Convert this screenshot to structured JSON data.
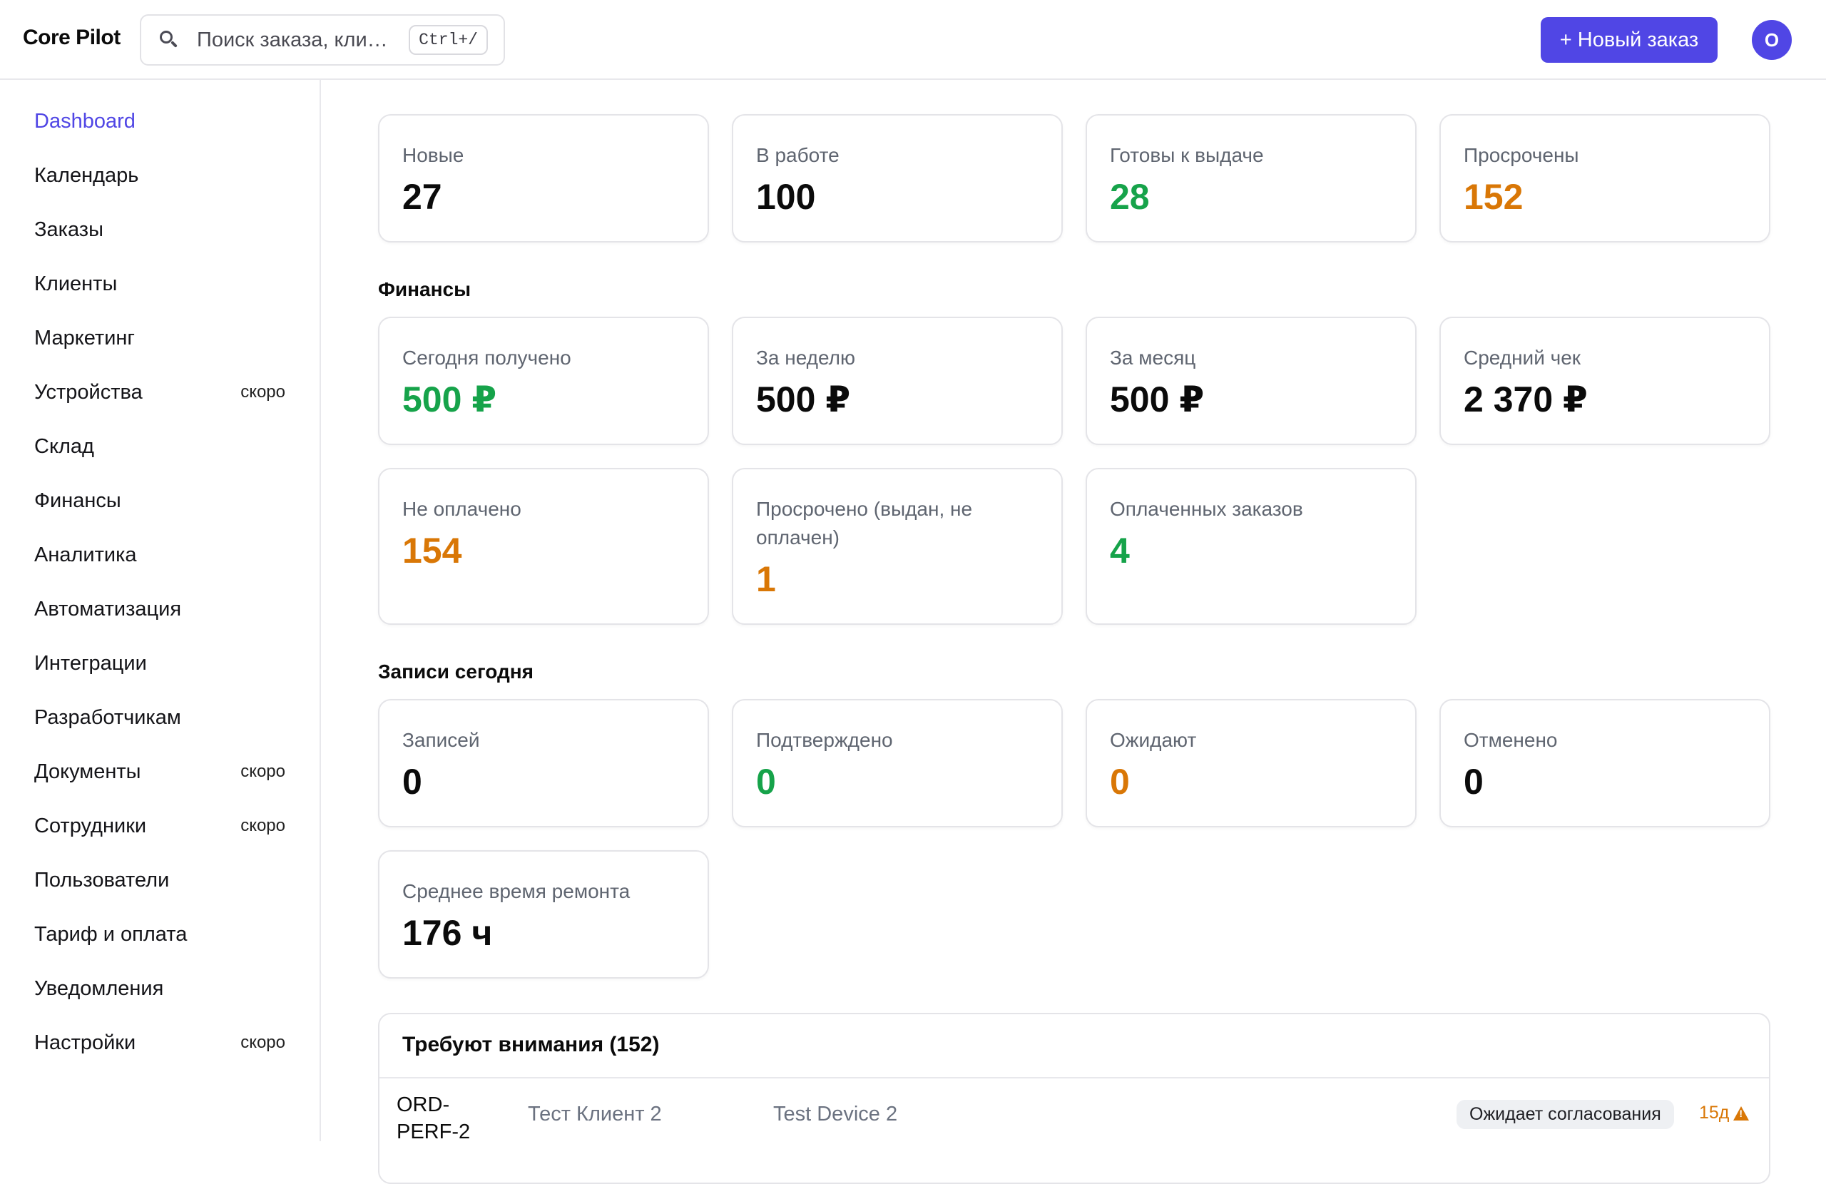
{
  "header": {
    "brand": "Core Pilot",
    "search_placeholder": "Поиск заказа, кли…",
    "search_shortcut": "Ctrl+/",
    "new_order_label": "+ Новый заказ",
    "avatar_initial": "O",
    "accent_color": "#5046e5"
  },
  "sidebar": {
    "items": [
      {
        "label": "Dashboard",
        "active": true,
        "badge": ""
      },
      {
        "label": "Календарь",
        "badge": ""
      },
      {
        "label": "Заказы",
        "badge": ""
      },
      {
        "label": "Клиенты",
        "badge": ""
      },
      {
        "label": "Маркетинг",
        "badge": ""
      },
      {
        "label": "Устройства",
        "badge": "скоро"
      },
      {
        "label": "Склад",
        "badge": ""
      },
      {
        "label": "Финансы",
        "badge": ""
      },
      {
        "label": "Аналитика",
        "badge": ""
      },
      {
        "label": "Автоматизация",
        "badge": ""
      },
      {
        "label": "Интеграции",
        "badge": ""
      },
      {
        "label": "Разработчикам",
        "badge": ""
      },
      {
        "label": "Документы",
        "badge": "скоро"
      },
      {
        "label": "Сотрудники",
        "badge": "скоро"
      },
      {
        "label": "Пользователи",
        "badge": ""
      },
      {
        "label": "Тариф и оплата",
        "badge": ""
      },
      {
        "label": "Уведомления",
        "badge": ""
      },
      {
        "label": "Настройки",
        "badge": "скоро"
      }
    ]
  },
  "orders_stats": [
    {
      "label": "Новые",
      "value": "27",
      "color": "dark"
    },
    {
      "label": "В работе",
      "value": "100",
      "color": "dark"
    },
    {
      "label": "Готовы к выдаче",
      "value": "28",
      "color": "green"
    },
    {
      "label": "Просрочены",
      "value": "152",
      "color": "orange"
    }
  ],
  "finance": {
    "title": "Финансы",
    "cards": [
      {
        "label": "Сегодня получено",
        "value": "500 ₽",
        "color": "green"
      },
      {
        "label": "За неделю",
        "value": "500 ₽",
        "color": "dark"
      },
      {
        "label": "За месяц",
        "value": "500 ₽",
        "color": "dark"
      },
      {
        "label": "Средний чек",
        "value": "2 370 ₽",
        "color": "dark"
      },
      {
        "label": "Не оплачено",
        "value": "154",
        "color": "orange"
      },
      {
        "label": "Просрочено (выдан, не оплачен)",
        "value": "1",
        "color": "orange"
      },
      {
        "label": "Оплаченных заказов",
        "value": "4",
        "color": "green"
      }
    ]
  },
  "appointments": {
    "title": "Записи сегодня",
    "cards": [
      {
        "label": "Записей",
        "value": "0",
        "color": "dark"
      },
      {
        "label": "Подтверждено",
        "value": "0",
        "color": "green"
      },
      {
        "label": "Ожидают",
        "value": "0",
        "color": "orange"
      },
      {
        "label": "Отменено",
        "value": "0",
        "color": "dark"
      },
      {
        "label": "Среднее время ремонта",
        "value": "176 ч",
        "color": "dark"
      }
    ]
  },
  "attention": {
    "title": "Требуют внимания (152)",
    "rows": [
      {
        "order": "ORD-PERF-2",
        "client": "Тест Клиент 2",
        "device": "Test Device 2",
        "status": "Ожидает согласования",
        "age": "15д",
        "icon": "warning-icon"
      }
    ]
  },
  "colors": {
    "green": "#16a34a",
    "orange": "#d97706"
  }
}
